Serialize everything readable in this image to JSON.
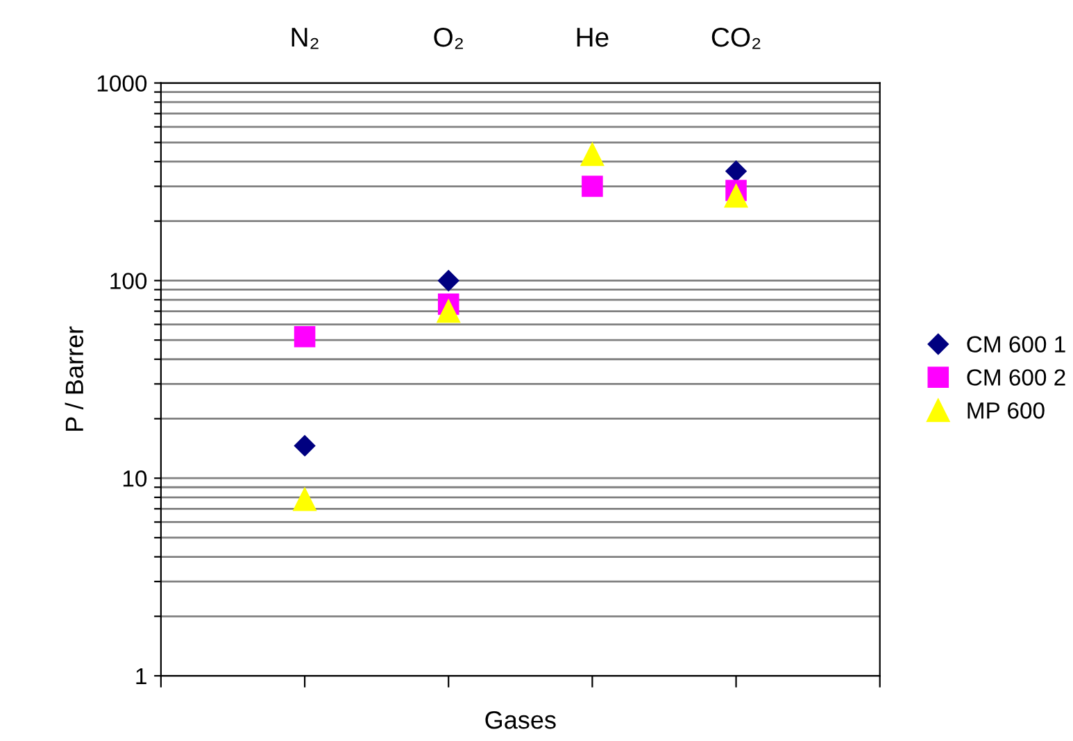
{
  "chart_data": {
    "type": "scatter",
    "xlabel": "Gases",
    "ylabel": "P / Barrer",
    "categories": [
      "N₂",
      "O₂",
      "He",
      "CO₂"
    ],
    "log": "y",
    "ylim": [
      1,
      1000
    ],
    "yticks": [
      1,
      {
        "value": 2,
        "label": null
      },
      {
        "value": 3,
        "label": null
      },
      {
        "value": 4,
        "label": null
      },
      {
        "value": 5,
        "label": null
      },
      {
        "value": 6,
        "label": null
      },
      {
        "value": 7,
        "label": null
      },
      {
        "value": 8,
        "label": null
      },
      {
        "value": 9,
        "label": null
      },
      10,
      {
        "value": 20,
        "label": null
      },
      {
        "value": 30,
        "label": null
      },
      {
        "value": 40,
        "label": null
      },
      {
        "value": 50,
        "label": null
      },
      {
        "value": 60,
        "label": null
      },
      {
        "value": 70,
        "label": null
      },
      {
        "value": 80,
        "label": null
      },
      {
        "value": 90,
        "label": null
      },
      100,
      {
        "value": 200,
        "label": null
      },
      {
        "value": 300,
        "label": null
      },
      {
        "value": 400,
        "label": null
      },
      {
        "value": 500,
        "label": null
      },
      {
        "value": 600,
        "label": null
      },
      {
        "value": 700,
        "label": null
      },
      {
        "value": 800,
        "label": null
      },
      {
        "value": 900,
        "label": null
      },
      1000
    ],
    "grid": "y",
    "legend": "right",
    "series": [
      {
        "name": "CM 600 1",
        "color": "#000080",
        "marker": "diamond",
        "values": [
          14.6,
          100,
          null,
          358
        ]
      },
      {
        "name": "CM 600 2",
        "color": "#ff00ff",
        "marker": "square",
        "values": [
          52,
          76,
          300,
          286
        ]
      },
      {
        "name": "MP 600",
        "color": "#ffff00",
        "marker": "triangle",
        "values": [
          7.8,
          70,
          435,
          268
        ]
      }
    ]
  }
}
